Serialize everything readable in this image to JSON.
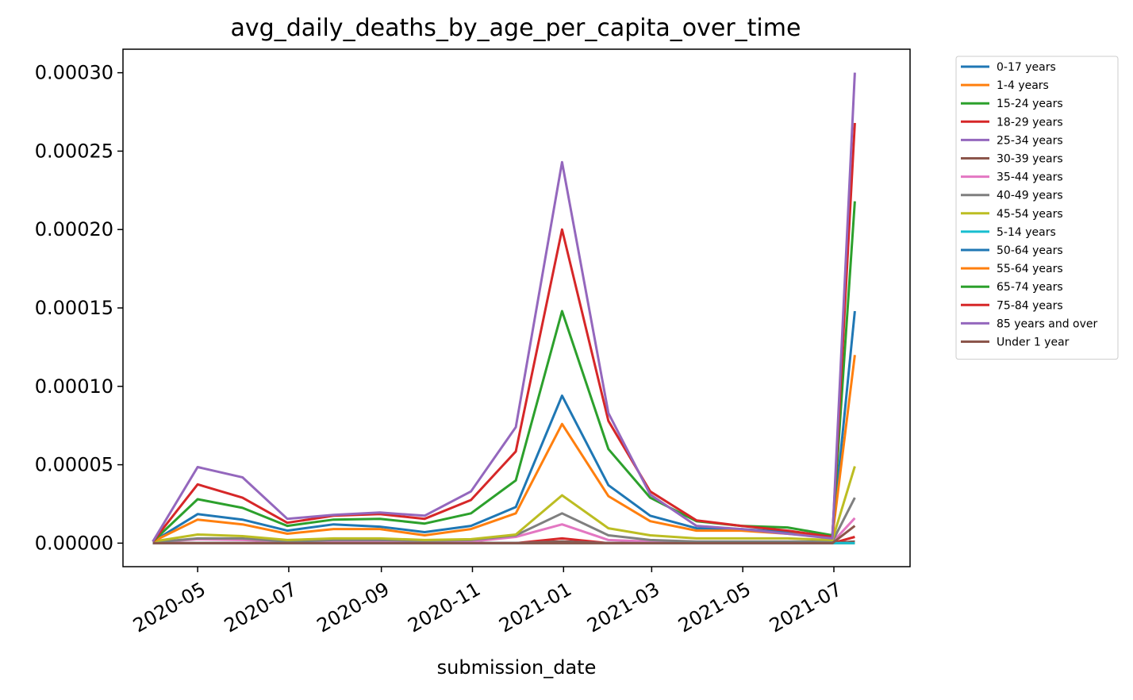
{
  "chart_data": {
    "type": "line",
    "title": "avg_daily_deaths_by_age_per_capita_over_time",
    "xlabel": "submission_date",
    "ylabel": "",
    "x_type": "date",
    "x_range": [
      "2020-03-12",
      "2021-08-21"
    ],
    "ylim": [
      -1.5e-05,
      0.000315
    ],
    "grid": false,
    "legend_position": "outside-right",
    "x_ticks": [
      "2020-05",
      "2020-07",
      "2020-09",
      "2020-11",
      "2021-01",
      "2021-03",
      "2021-05",
      "2021-07"
    ],
    "x_tick_dates": [
      "2020-05-01",
      "2020-07-01",
      "2020-09-01",
      "2020-11-01",
      "2021-01-01",
      "2021-03-01",
      "2021-05-01",
      "2021-07-01"
    ],
    "y_ticks": [
      "0.00000",
      "0.00005",
      "0.00010",
      "0.00015",
      "0.00020",
      "0.00025",
      "0.00030"
    ],
    "y_tick_values": [
      0,
      5e-05,
      0.0001,
      0.00015,
      0.0002,
      0.00025,
      0.0003
    ],
    "x": [
      "2020-04-01",
      "2020-05-01",
      "2020-05-31",
      "2020-06-30",
      "2020-07-31",
      "2020-08-31",
      "2020-09-30",
      "2020-10-31",
      "2020-11-30",
      "2020-12-31",
      "2021-01-31",
      "2021-02-28",
      "2021-03-31",
      "2021-04-30",
      "2021-05-31",
      "2021-06-30",
      "2021-07-15"
    ],
    "series": [
      {
        "name": "0-17 years",
        "color": "#1f77b4",
        "values": [
          0,
          0,
          0,
          0,
          0,
          0,
          0,
          0,
          0,
          1e-06,
          0,
          0,
          0,
          0,
          0,
          0,
          0
        ]
      },
      {
        "name": "1-4 years",
        "color": "#ff7f0e",
        "values": [
          0,
          0,
          0,
          0,
          0,
          0,
          0,
          0,
          0,
          0,
          0,
          0,
          0,
          0,
          0,
          0,
          0
        ]
      },
      {
        "name": "15-24 years",
        "color": "#2ca02c",
        "values": [
          0,
          0,
          0,
          0,
          0,
          0,
          0,
          0,
          0,
          1e-06,
          0,
          0,
          0,
          0,
          0,
          0,
          1e-06
        ]
      },
      {
        "name": "18-29 years",
        "color": "#d62728",
        "values": [
          0,
          0,
          0,
          0,
          0,
          0,
          0,
          0,
          0,
          3e-06,
          0,
          0,
          0,
          0,
          0,
          0,
          4e-06
        ]
      },
      {
        "name": "25-34 years",
        "color": "#9467bd",
        "values": [
          0,
          0,
          0,
          0,
          0,
          0,
          0,
          0,
          0,
          1e-06,
          0,
          0,
          0,
          0,
          0,
          0,
          1e-06
        ]
      },
      {
        "name": "30-39 years",
        "color": "#8c564b",
        "values": [
          0,
          0,
          0,
          0,
          0,
          0,
          0,
          0,
          0,
          1e-06,
          0,
          0,
          0,
          0,
          0,
          0,
          1e-06
        ]
      },
      {
        "name": "35-44 years",
        "color": "#e377c2",
        "values": [
          5e-07,
          2.5e-06,
          2e-06,
          1e-06,
          1.5e-06,
          1.5e-06,
          1e-06,
          1e-06,
          4e-06,
          1.2e-05,
          2e-06,
          1e-06,
          5e-07,
          5e-07,
          5e-07,
          5e-07,
          1.6e-05
        ]
      },
      {
        "name": "40-49 years",
        "color": "#7f7f7f",
        "values": [
          5e-07,
          3e-06,
          3e-06,
          1e-06,
          2e-06,
          2e-06,
          1.5e-06,
          2e-06,
          5e-06,
          1.9e-05,
          5e-06,
          2e-06,
          1e-06,
          1e-06,
          1e-06,
          1e-06,
          2.9e-05
        ]
      },
      {
        "name": "45-54 years",
        "color": "#bcbd22",
        "values": [
          1e-06,
          5.5e-06,
          4.5e-06,
          2e-06,
          3e-06,
          3e-06,
          2e-06,
          2.5e-06,
          5.5e-06,
          3.05e-05,
          9.5e-06,
          5e-06,
          3e-06,
          3e-06,
          3e-06,
          2e-06,
          4.9e-05
        ]
      },
      {
        "name": "5-14 years",
        "color": "#17becf",
        "values": [
          0,
          0,
          0,
          0,
          0,
          0,
          0,
          0,
          0,
          0,
          0,
          0,
          0,
          0,
          0,
          0,
          0
        ]
      },
      {
        "name": "50-64 years",
        "color": "#1f77b4",
        "values": [
          1e-06,
          1.85e-05,
          1.5e-05,
          8e-06,
          1.2e-05,
          1.05e-05,
          7e-06,
          1.1e-05,
          2.3e-05,
          9.4e-05,
          3.7e-05,
          1.75e-05,
          9.5e-06,
          9e-06,
          7e-06,
          4.5e-06,
          0.000148
        ]
      },
      {
        "name": "55-64 years",
        "color": "#ff7f0e",
        "values": [
          1e-06,
          1.5e-05,
          1.2e-05,
          6e-06,
          9e-06,
          9e-06,
          5e-06,
          9e-06,
          1.9e-05,
          7.6e-05,
          3e-05,
          1.4e-05,
          8e-06,
          8e-06,
          6e-06,
          4e-06,
          0.00012
        ]
      },
      {
        "name": "65-74 years",
        "color": "#2ca02c",
        "values": [
          1e-06,
          2.8e-05,
          2.25e-05,
          1.1e-05,
          1.5e-05,
          1.55e-05,
          1.25e-05,
          1.9e-05,
          4e-05,
          0.000148,
          6e-05,
          2.9e-05,
          1.4e-05,
          1.1e-05,
          1e-05,
          5e-06,
          0.000218
        ]
      },
      {
        "name": "75-84 years",
        "color": "#d62728",
        "values": [
          1e-06,
          3.75e-05,
          2.9e-05,
          1.3e-05,
          1.75e-05,
          1.85e-05,
          1.55e-05,
          2.75e-05,
          5.85e-05,
          0.0002,
          7.8e-05,
          3.3e-05,
          1.45e-05,
          1.1e-05,
          8e-06,
          4e-06,
          0.000268
        ]
      },
      {
        "name": "85 years and over",
        "color": "#9467bd",
        "values": [
          1e-06,
          4.85e-05,
          4.2e-05,
          1.55e-05,
          1.8e-05,
          1.95e-05,
          1.75e-05,
          3.3e-05,
          7.4e-05,
          0.000243,
          8.3e-05,
          3.1e-05,
          1.1e-05,
          9e-06,
          6e-06,
          3e-06,
          0.0003
        ]
      },
      {
        "name": "Under 1 year",
        "color": "#8c564b",
        "values": [
          0,
          0,
          0,
          0,
          0,
          0,
          0,
          0,
          0,
          0,
          0,
          0,
          0,
          0,
          0,
          0,
          1.1e-05
        ]
      }
    ]
  }
}
